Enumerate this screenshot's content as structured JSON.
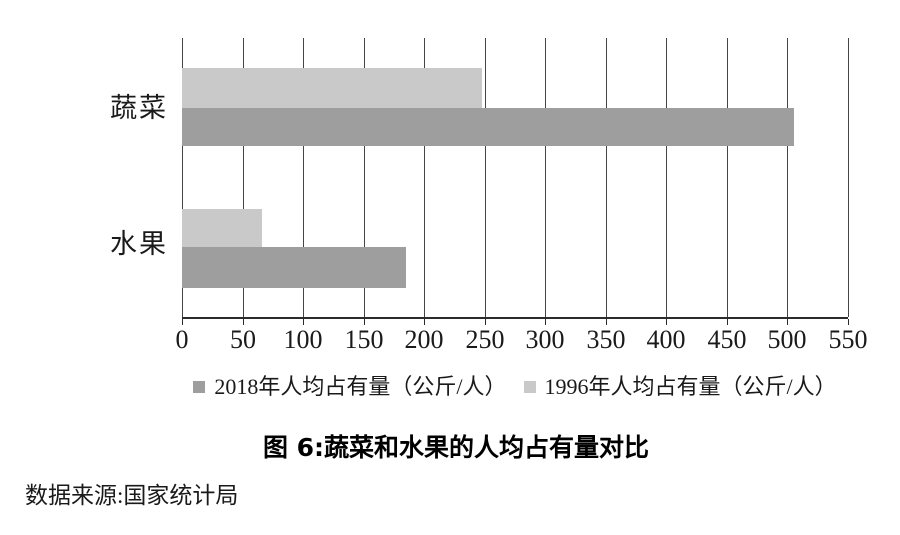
{
  "chart_data": {
    "type": "bar",
    "orientation": "horizontal",
    "title": "图 6:蔬菜和水果的人均占有量对比",
    "source": "数据来源:国家统计局",
    "categories": [
      "蔬菜",
      "水果"
    ],
    "series": [
      {
        "name": "2018年人均占有量（公斤/人）",
        "color": "#9e9e9e",
        "values": [
          505,
          185
        ]
      },
      {
        "name": "1996年人均占有量（公斤/人）",
        "color": "#c9c9c9",
        "values": [
          248,
          66
        ]
      }
    ],
    "xlim": [
      0,
      550
    ],
    "xticks": [
      0,
      50,
      100,
      150,
      200,
      250,
      300,
      350,
      400,
      450,
      500,
      550
    ],
    "grid": "vertical",
    "legend_position": "bottom",
    "background_color": "#ffffff",
    "axis_color": "#2b2b2b",
    "gridline_color": "#454545",
    "text_color": "#1a1a1a"
  }
}
